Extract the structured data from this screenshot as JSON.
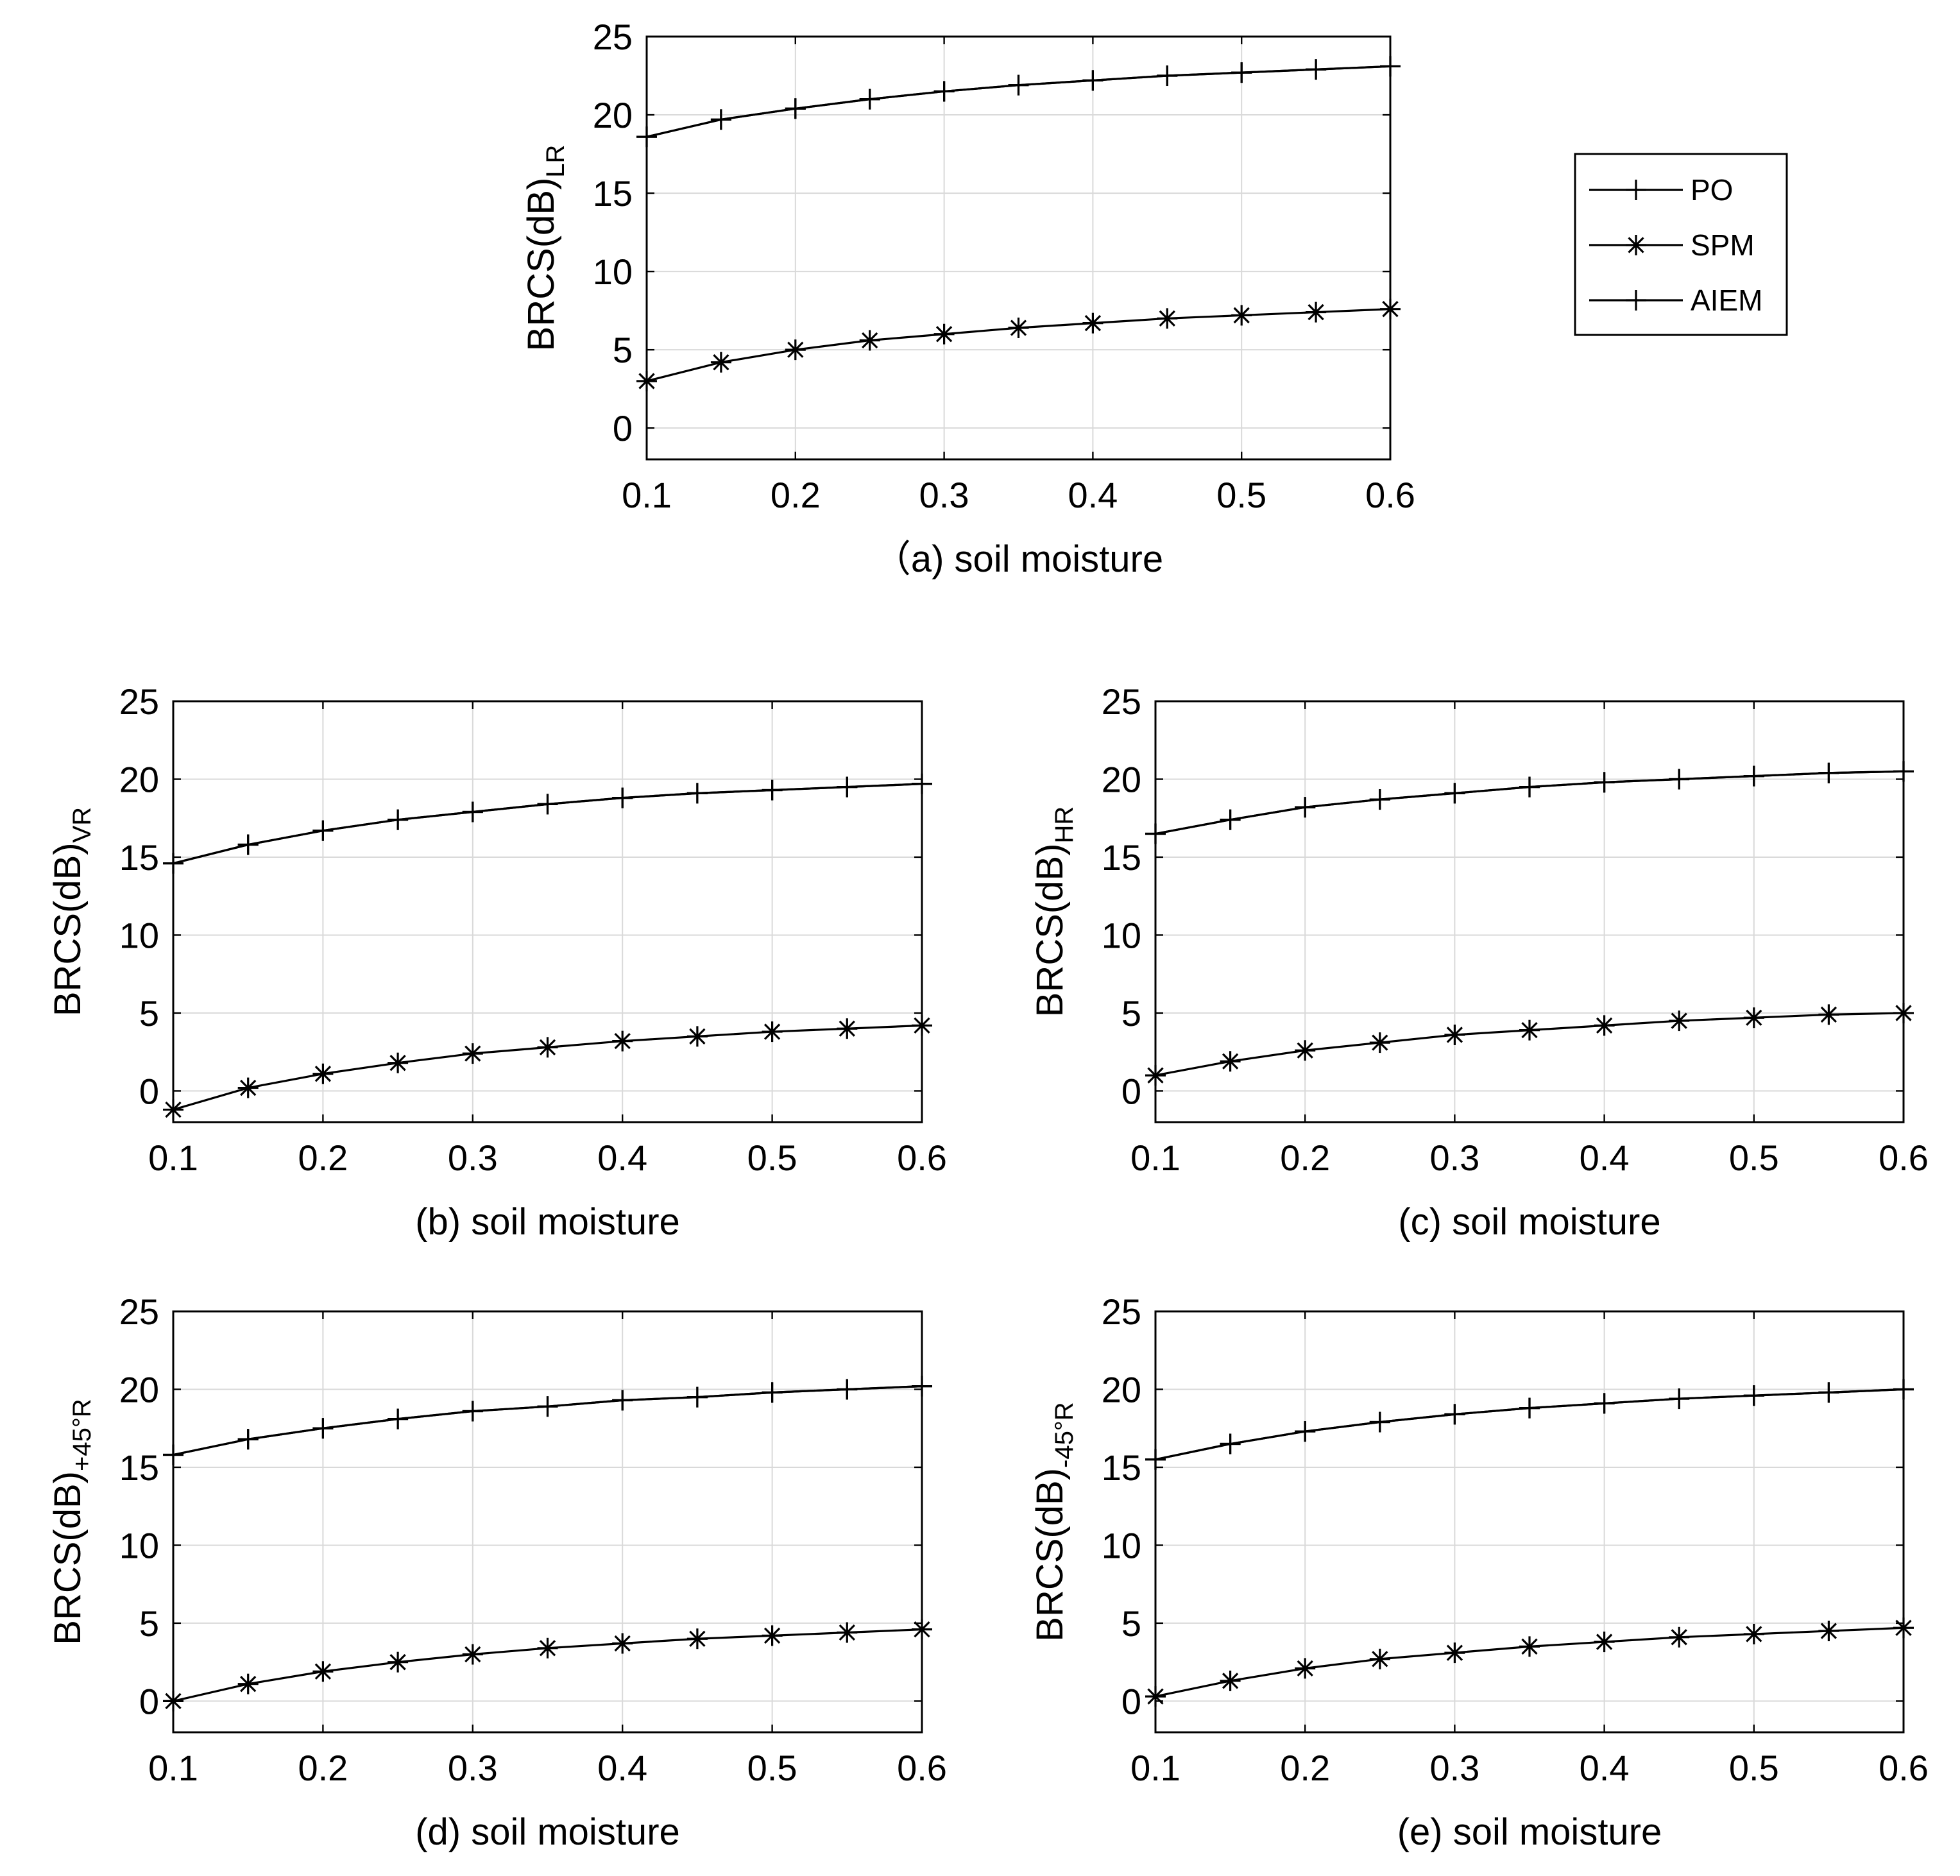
{
  "chart_data": [
    {
      "id": "a",
      "type": "line",
      "xlabel": "（a) soil moisture",
      "ylabel_main": "BRCS(dB)",
      "ylabel_sub": "LR",
      "xlim": [
        0.1,
        0.6
      ],
      "ylim": [
        -2,
        25
      ],
      "xticks": [
        "0.1",
        "0.2",
        "0.3",
        "0.4",
        "0.5",
        "0.6"
      ],
      "yticks": [
        "0",
        "5",
        "10",
        "15",
        "20",
        "25"
      ],
      "grid": true,
      "x": [
        0.1,
        0.15,
        0.2,
        0.25,
        0.3,
        0.35,
        0.4,
        0.45,
        0.5,
        0.55,
        0.6
      ],
      "series": [
        {
          "name": "PO",
          "marker": "plus",
          "values": [
            18.6,
            19.7,
            20.4,
            21.0,
            21.5,
            21.9,
            22.2,
            22.5,
            22.7,
            22.9,
            23.1
          ]
        },
        {
          "name": "SPM",
          "marker": "asterisk",
          "values": [
            3.0,
            4.2,
            5.0,
            5.6,
            6.0,
            6.4,
            6.7,
            7.0,
            7.2,
            7.4,
            7.6
          ]
        },
        {
          "name": "AIEM",
          "marker": "plus",
          "values": [
            18.6,
            19.7,
            20.4,
            21.0,
            21.5,
            21.9,
            22.2,
            22.5,
            22.7,
            22.9,
            23.1
          ]
        }
      ]
    },
    {
      "id": "b",
      "type": "line",
      "xlabel": "(b) soil moisture",
      "ylabel_main": "BRCS(dB)",
      "ylabel_sub": "VR",
      "xlim": [
        0.1,
        0.6
      ],
      "ylim": [
        -2,
        25
      ],
      "xticks": [
        "0.1",
        "0.2",
        "0.3",
        "0.4",
        "0.5",
        "0.6"
      ],
      "yticks": [
        "0",
        "5",
        "10",
        "15",
        "20",
        "25"
      ],
      "grid": true,
      "x": [
        0.1,
        0.15,
        0.2,
        0.25,
        0.3,
        0.35,
        0.4,
        0.45,
        0.5,
        0.55,
        0.6
      ],
      "series": [
        {
          "name": "PO",
          "marker": "plus",
          "values": [
            14.6,
            15.8,
            16.7,
            17.4,
            17.9,
            18.4,
            18.8,
            19.1,
            19.3,
            19.5,
            19.7
          ]
        },
        {
          "name": "SPM",
          "marker": "asterisk",
          "values": [
            -1.2,
            0.2,
            1.1,
            1.8,
            2.4,
            2.8,
            3.2,
            3.5,
            3.8,
            4.0,
            4.2
          ]
        },
        {
          "name": "AIEM",
          "marker": "plus",
          "values": [
            14.6,
            15.8,
            16.7,
            17.4,
            17.9,
            18.4,
            18.8,
            19.1,
            19.3,
            19.5,
            19.7
          ]
        }
      ]
    },
    {
      "id": "c",
      "type": "line",
      "xlabel": "(c) soil moisture",
      "ylabel_main": "BRCS(dB)",
      "ylabel_sub": "HR",
      "xlim": [
        0.1,
        0.6
      ],
      "ylim": [
        -2,
        25
      ],
      "xticks": [
        "0.1",
        "0.2",
        "0.3",
        "0.4",
        "0.5",
        "0.6"
      ],
      "yticks": [
        "0",
        "5",
        "10",
        "15",
        "20",
        "25"
      ],
      "grid": true,
      "x": [
        0.1,
        0.15,
        0.2,
        0.25,
        0.3,
        0.35,
        0.4,
        0.45,
        0.5,
        0.55,
        0.6
      ],
      "series": [
        {
          "name": "PO",
          "marker": "plus",
          "values": [
            16.5,
            17.4,
            18.2,
            18.7,
            19.1,
            19.5,
            19.8,
            20.0,
            20.2,
            20.4,
            20.5
          ]
        },
        {
          "name": "SPM",
          "marker": "asterisk",
          "values": [
            1.0,
            1.9,
            2.6,
            3.1,
            3.6,
            3.9,
            4.2,
            4.5,
            4.7,
            4.9,
            5.0
          ]
        },
        {
          "name": "AIEM",
          "marker": "plus",
          "values": [
            16.5,
            17.4,
            18.2,
            18.7,
            19.1,
            19.5,
            19.8,
            20.0,
            20.2,
            20.4,
            20.5
          ]
        }
      ]
    },
    {
      "id": "d",
      "type": "line",
      "xlabel": "(d) soil moisture",
      "ylabel_main": "BRCS(dB)",
      "ylabel_sub": "+45°R",
      "xlim": [
        0.1,
        0.6
      ],
      "ylim": [
        -2,
        25
      ],
      "xticks": [
        "0.1",
        "0.2",
        "0.3",
        "0.4",
        "0.5",
        "0.6"
      ],
      "yticks": [
        "0",
        "5",
        "10",
        "15",
        "20",
        "25"
      ],
      "grid": true,
      "x": [
        0.1,
        0.15,
        0.2,
        0.25,
        0.3,
        0.35,
        0.4,
        0.45,
        0.5,
        0.55,
        0.6
      ],
      "series": [
        {
          "name": "PO",
          "marker": "plus",
          "values": [
            15.8,
            16.8,
            17.5,
            18.1,
            18.6,
            18.9,
            19.3,
            19.5,
            19.8,
            20.0,
            20.2
          ]
        },
        {
          "name": "SPM",
          "marker": "asterisk",
          "values": [
            0.0,
            1.1,
            1.9,
            2.5,
            3.0,
            3.4,
            3.7,
            4.0,
            4.2,
            4.4,
            4.6
          ]
        },
        {
          "name": "AIEM",
          "marker": "plus",
          "values": [
            15.8,
            16.8,
            17.5,
            18.1,
            18.6,
            18.9,
            19.3,
            19.5,
            19.8,
            20.0,
            20.2
          ]
        }
      ]
    },
    {
      "id": "e",
      "type": "line",
      "xlabel": "(e) soil moisture",
      "ylabel_main": "BRCS(dB)",
      "ylabel_sub": "-45°R",
      "xlim": [
        0.1,
        0.6
      ],
      "ylim": [
        -2,
        25
      ],
      "xticks": [
        "0.1",
        "0.2",
        "0.3",
        "0.4",
        "0.5",
        "0.6"
      ],
      "yticks": [
        "0",
        "5",
        "10",
        "15",
        "20",
        "25"
      ],
      "grid": true,
      "x": [
        0.1,
        0.15,
        0.2,
        0.25,
        0.3,
        0.35,
        0.4,
        0.45,
        0.5,
        0.55,
        0.6
      ],
      "series": [
        {
          "name": "PO",
          "marker": "plus",
          "values": [
            15.5,
            16.5,
            17.3,
            17.9,
            18.4,
            18.8,
            19.1,
            19.4,
            19.6,
            19.8,
            20.0
          ]
        },
        {
          "name": "SPM",
          "marker": "asterisk",
          "values": [
            0.3,
            1.3,
            2.1,
            2.7,
            3.1,
            3.5,
            3.8,
            4.1,
            4.3,
            4.5,
            4.7
          ]
        },
        {
          "name": "AIEM",
          "marker": "plus",
          "values": [
            15.5,
            16.5,
            17.3,
            17.9,
            18.4,
            18.8,
            19.1,
            19.4,
            19.6,
            19.8,
            20.0
          ]
        }
      ]
    }
  ],
  "legend": {
    "position": "right of panel (a)",
    "entries": [
      {
        "label": "PO",
        "marker": "plus"
      },
      {
        "label": "SPM",
        "marker": "asterisk"
      },
      {
        "label": "AIEM",
        "marker": "plus"
      }
    ]
  },
  "colors": {
    "line": "#000000",
    "grid": "#d9d9d9",
    "background": "#ffffff"
  }
}
